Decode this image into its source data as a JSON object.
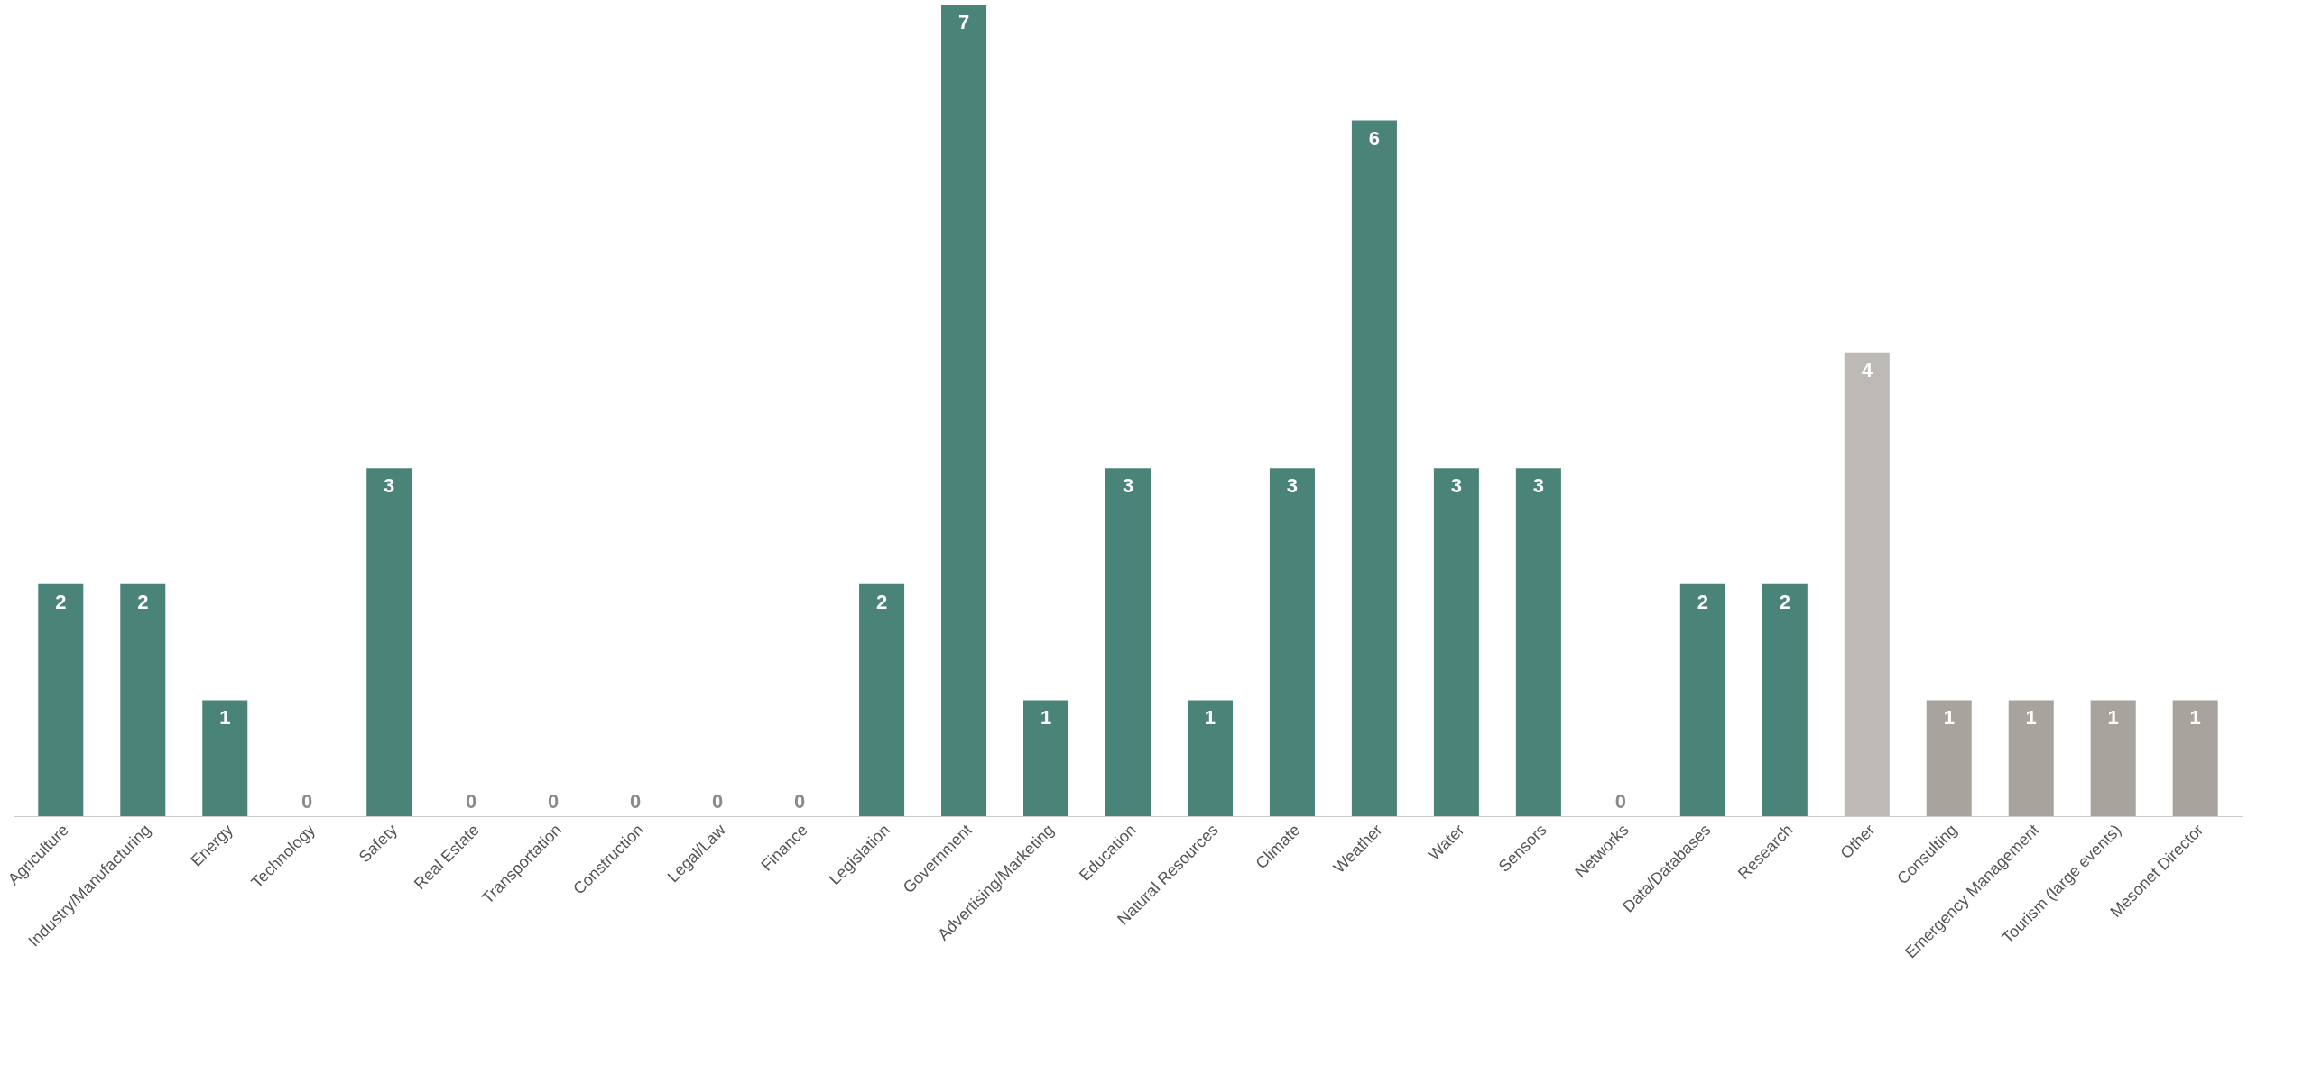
{
  "chart_data": {
    "type": "bar",
    "categories": [
      "Agriculture",
      "Industry/Manufacturing",
      "Energy",
      "Technology",
      "Safety",
      "Real Estate",
      "Transportation",
      "Construction",
      "Legal/Law",
      "Finance",
      "Legislation",
      "Government",
      "Advertising/Marketing",
      "Education",
      "Natural Resources",
      "Climate",
      "Weather",
      "Water",
      "Sensors",
      "Networks",
      "Data/Databases",
      "Research",
      "Other",
      "Consulting",
      "Emergency Management",
      "Tourism (large events)",
      "Mesonet Director"
    ],
    "values": [
      2,
      2,
      1,
      0,
      3,
      0,
      0,
      0,
      0,
      0,
      2,
      7,
      1,
      3,
      1,
      3,
      6,
      3,
      3,
      0,
      2,
      2,
      4,
      1,
      1,
      1,
      1
    ],
    "colors": [
      "#4a8479",
      "#4a8479",
      "#4a8479",
      "#4a8479",
      "#4a8479",
      "#4a8479",
      "#4a8479",
      "#4a8479",
      "#4a8479",
      "#4a8479",
      "#4a8479",
      "#4a8479",
      "#4a8479",
      "#4a8479",
      "#4a8479",
      "#4a8479",
      "#4a8479",
      "#4a8479",
      "#4a8479",
      "#4a8479",
      "#4a8479",
      "#4a8479",
      "#bdbab5",
      "#a8a39d",
      "#a8a39d",
      "#a8a39d",
      "#a8a39d"
    ],
    "data_labels": true,
    "grid": false,
    "tick_labels": "x"
  }
}
